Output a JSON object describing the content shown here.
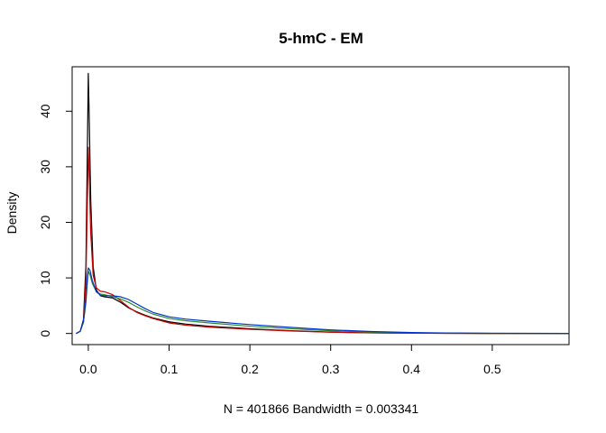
{
  "chart_data": {
    "type": "line",
    "title": "5-hmC - EM",
    "xlabel": "N = 401866   Bandwidth = 0.003341",
    "ylabel": "Density",
    "xlim": [
      -0.02,
      0.595
    ],
    "ylim": [
      -2,
      48
    ],
    "x_ticks": [
      0.0,
      0.1,
      0.2,
      0.3,
      0.4,
      0.5
    ],
    "x_tick_labels": [
      "0.0",
      "0.1",
      "0.2",
      "0.3",
      "0.4",
      "0.5"
    ],
    "y_ticks": [
      0,
      10,
      20,
      30,
      40
    ],
    "y_tick_labels": [
      "0",
      "10",
      "20",
      "30",
      "40"
    ],
    "grid": false,
    "legend": "none",
    "colors": {
      "black": "#000000",
      "red": "#cc0000",
      "green": "#2e8b2e",
      "blue": "#0033cc"
    },
    "series": [
      {
        "color": "#000000",
        "points": [
          [
            -0.015,
            0
          ],
          [
            -0.01,
            0.4
          ],
          [
            -0.006,
            2.5
          ],
          [
            -0.003,
            12
          ],
          [
            -0.001,
            35
          ],
          [
            0.0,
            46.8
          ],
          [
            0.001,
            40
          ],
          [
            0.003,
            24
          ],
          [
            0.006,
            12
          ],
          [
            0.01,
            7.8
          ],
          [
            0.015,
            6.8
          ],
          [
            0.02,
            6.6
          ],
          [
            0.03,
            6.4
          ],
          [
            0.04,
            5.6
          ],
          [
            0.05,
            4.6
          ],
          [
            0.06,
            3.9
          ],
          [
            0.07,
            3.3
          ],
          [
            0.08,
            2.8
          ],
          [
            0.1,
            2.1
          ],
          [
            0.12,
            1.7
          ],
          [
            0.15,
            1.3
          ],
          [
            0.2,
            0.85
          ],
          [
            0.25,
            0.5
          ],
          [
            0.3,
            0.25
          ],
          [
            0.35,
            0.12
          ],
          [
            0.4,
            0.06
          ],
          [
            0.45,
            0.03
          ],
          [
            0.5,
            0.01
          ],
          [
            0.595,
            0
          ]
        ]
      },
      {
        "color": "#cc0000",
        "points": [
          [
            -0.015,
            0
          ],
          [
            -0.01,
            0.4
          ],
          [
            -0.006,
            2.2
          ],
          [
            -0.003,
            9
          ],
          [
            -0.001,
            25
          ],
          [
            0.0,
            33.5
          ],
          [
            0.001,
            29
          ],
          [
            0.003,
            18
          ],
          [
            0.006,
            10.5
          ],
          [
            0.01,
            8.2
          ],
          [
            0.015,
            7.6
          ],
          [
            0.02,
            7.5
          ],
          [
            0.03,
            7.0
          ],
          [
            0.04,
            5.9
          ],
          [
            0.05,
            4.7
          ],
          [
            0.06,
            3.8
          ],
          [
            0.07,
            3.2
          ],
          [
            0.08,
            2.7
          ],
          [
            0.1,
            1.9
          ],
          [
            0.12,
            1.5
          ],
          [
            0.15,
            1.15
          ],
          [
            0.2,
            0.75
          ],
          [
            0.25,
            0.45
          ],
          [
            0.3,
            0.22
          ],
          [
            0.35,
            0.1
          ],
          [
            0.4,
            0.05
          ],
          [
            0.45,
            0.02
          ],
          [
            0.5,
            0.01
          ],
          [
            0.595,
            0
          ]
        ]
      },
      {
        "color": "#2e8b2e",
        "points": [
          [
            -0.015,
            0
          ],
          [
            -0.01,
            0.4
          ],
          [
            -0.006,
            2.0
          ],
          [
            -0.003,
            5.5
          ],
          [
            -0.001,
            9.5
          ],
          [
            0.0,
            11.2
          ],
          [
            0.002,
            10.6
          ],
          [
            0.005,
            9.0
          ],
          [
            0.01,
            7.5
          ],
          [
            0.015,
            7.1
          ],
          [
            0.02,
            7.0
          ],
          [
            0.03,
            6.6
          ],
          [
            0.04,
            6.2
          ],
          [
            0.05,
            5.6
          ],
          [
            0.06,
            4.8
          ],
          [
            0.07,
            4.1
          ],
          [
            0.08,
            3.5
          ],
          [
            0.1,
            2.7
          ],
          [
            0.12,
            2.3
          ],
          [
            0.15,
            1.9
          ],
          [
            0.2,
            1.3
          ],
          [
            0.25,
            0.85
          ],
          [
            0.3,
            0.5
          ],
          [
            0.35,
            0.25
          ],
          [
            0.4,
            0.12
          ],
          [
            0.45,
            0.06
          ],
          [
            0.5,
            0.03
          ],
          [
            0.595,
            0.01
          ]
        ]
      },
      {
        "color": "#0033cc",
        "points": [
          [
            -0.015,
            0
          ],
          [
            -0.01,
            0.4
          ],
          [
            -0.006,
            2.2
          ],
          [
            -0.003,
            6
          ],
          [
            -0.001,
            10.5
          ],
          [
            0.0,
            11.8
          ],
          [
            0.002,
            11.4
          ],
          [
            0.005,
            9.5
          ],
          [
            0.01,
            7.5
          ],
          [
            0.015,
            6.9
          ],
          [
            0.02,
            6.8
          ],
          [
            0.03,
            6.8
          ],
          [
            0.04,
            6.6
          ],
          [
            0.05,
            6.1
          ],
          [
            0.06,
            5.3
          ],
          [
            0.07,
            4.5
          ],
          [
            0.08,
            3.8
          ],
          [
            0.1,
            3.0
          ],
          [
            0.12,
            2.6
          ],
          [
            0.15,
            2.2
          ],
          [
            0.2,
            1.6
          ],
          [
            0.25,
            1.1
          ],
          [
            0.3,
            0.65
          ],
          [
            0.35,
            0.35
          ],
          [
            0.4,
            0.17
          ],
          [
            0.45,
            0.08
          ],
          [
            0.5,
            0.04
          ],
          [
            0.595,
            0.01
          ]
        ]
      }
    ]
  }
}
